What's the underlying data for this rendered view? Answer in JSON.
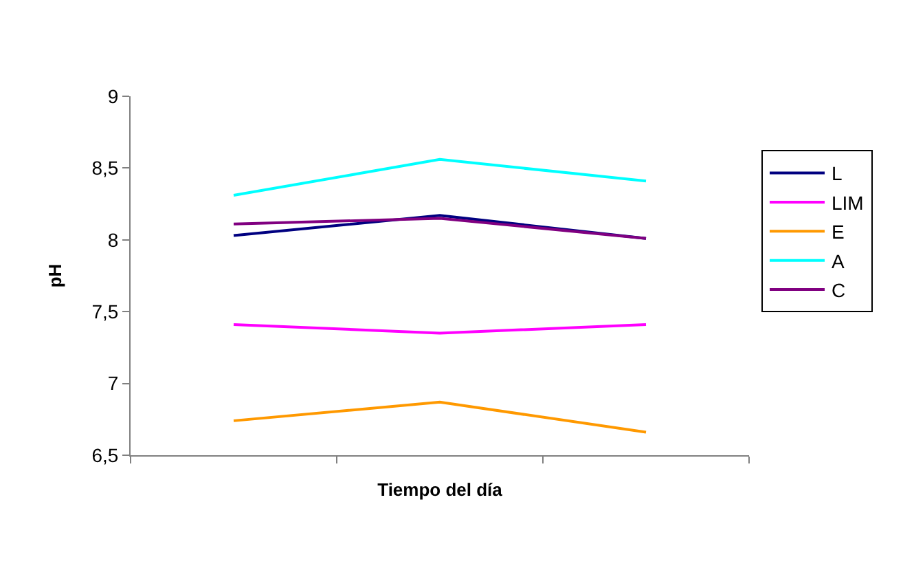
{
  "chart_data": {
    "type": "line",
    "xlabel": "Tiempo del día",
    "ylabel": "pH",
    "categories": [
      null,
      null,
      null
    ],
    "series": [
      {
        "name": "L",
        "color": "#000080",
        "values": [
          8.03,
          8.17,
          8.01
        ]
      },
      {
        "name": "LIM",
        "color": "#ff00ff",
        "values": [
          7.41,
          7.35,
          7.41
        ]
      },
      {
        "name": "E",
        "color": "#ff9900",
        "values": [
          6.74,
          6.87,
          6.66
        ]
      },
      {
        "name": "A",
        "color": "#00ffff",
        "values": [
          8.31,
          8.56,
          8.41
        ]
      },
      {
        "name": "C",
        "color": "#800080",
        "values": [
          8.11,
          8.15,
          8.01
        ]
      }
    ],
    "ylim": [
      6.5,
      9
    ],
    "yticks": [
      {
        "value": 6.5,
        "label": "6,5"
      },
      7,
      {
        "value": 7.5,
        "label": "7,5"
      },
      8,
      {
        "value": 8.5,
        "label": "8,5"
      },
      9
    ],
    "tick_labels": "y",
    "legend": "right",
    "marker": "none",
    "line_style": "solid"
  }
}
